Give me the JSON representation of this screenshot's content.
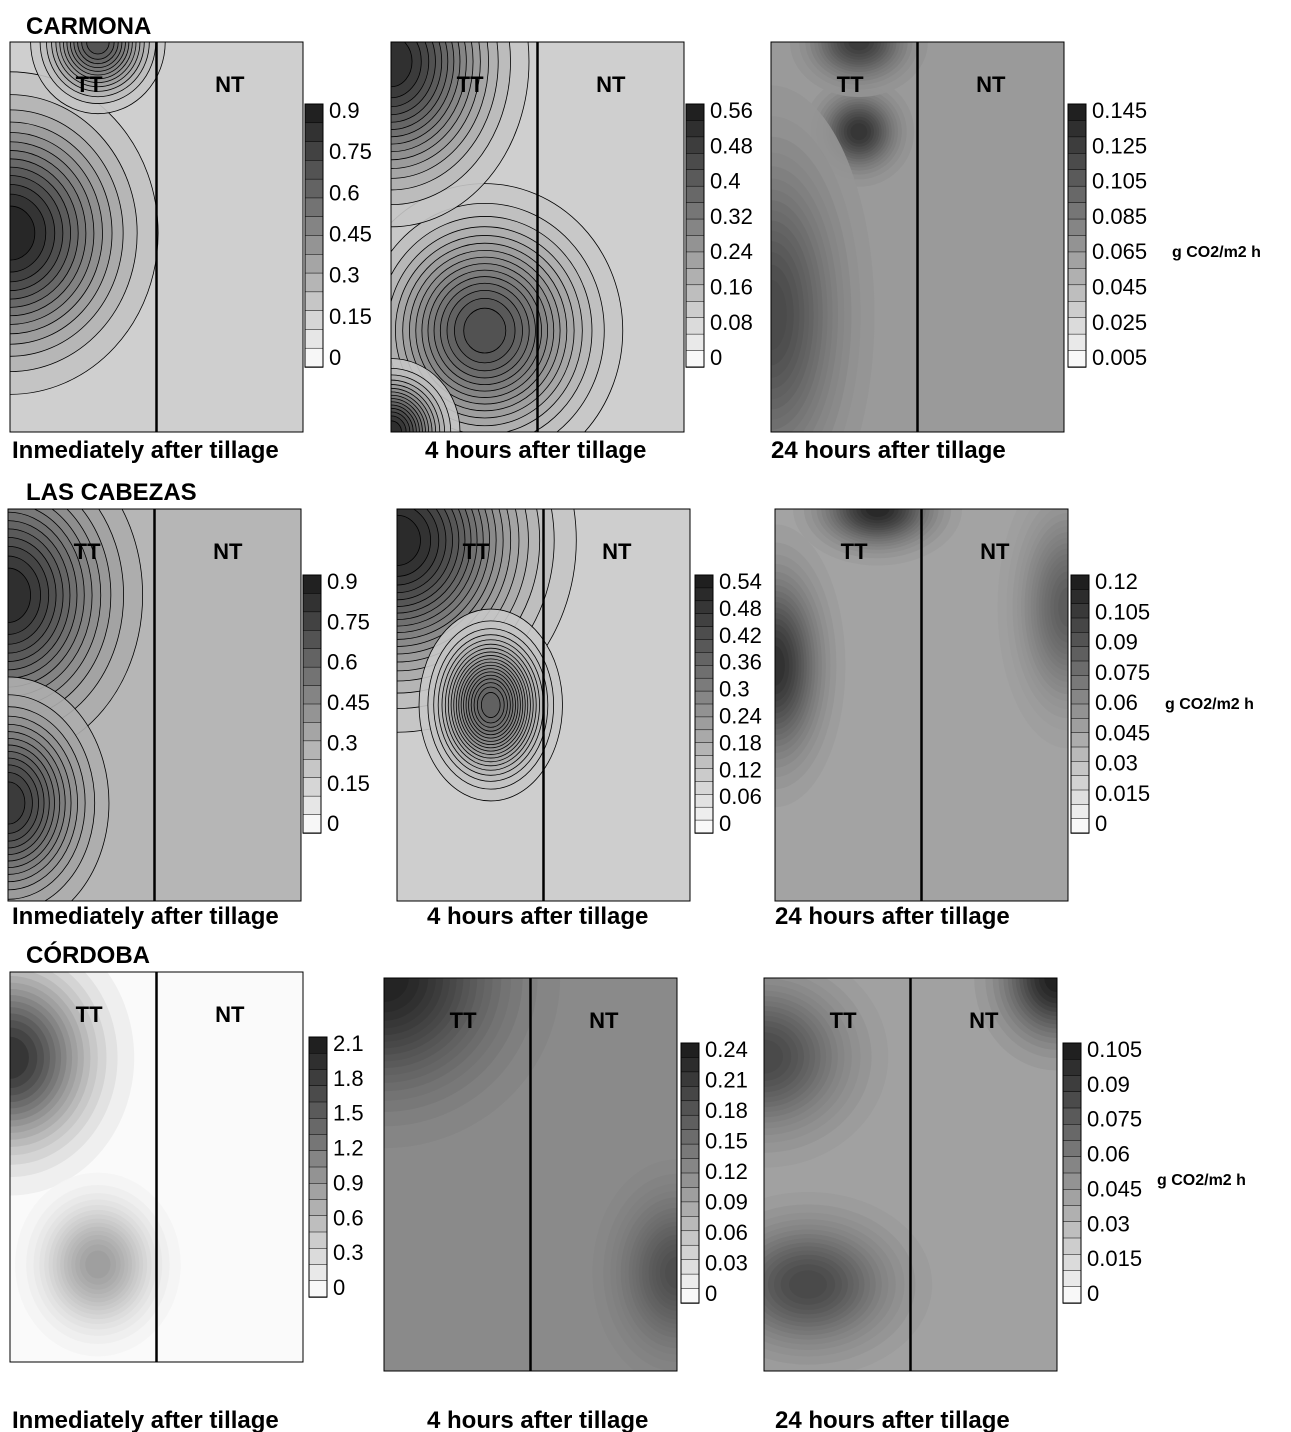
{
  "figure": {
    "unit_label": "g CO2/m2 h",
    "zone_labels": {
      "left": "TT",
      "right": "NT"
    }
  },
  "chart_data": [
    {
      "type": "heatmap",
      "site": "CARMONA",
      "caption": "Inmediately after tillage",
      "zones": [
        "TT",
        "NT"
      ],
      "colorbar": {
        "ticks": [
          "0.9",
          "0.75",
          "0.6",
          "0.45",
          "0.3",
          "0.15",
          "0"
        ],
        "range": [
          0,
          0.95
        ],
        "unit": ""
      },
      "hotspots": [
        {
          "u": 0.0,
          "v": 0.49,
          "value": 0.95,
          "sx": 0.22,
          "sy": 0.18
        },
        {
          "u": 0.3,
          "v": 0.0,
          "value": 0.75,
          "sx": 0.1,
          "sy": 0.08
        }
      ],
      "base": 0.2,
      "lines": true
    },
    {
      "type": "heatmap",
      "site": "CARMONA",
      "caption": "4 hours after tillage",
      "zones": [
        "TT",
        "NT"
      ],
      "colorbar": {
        "ticks": [
          "0.56",
          "0.48",
          "0.4",
          "0.32",
          "0.24",
          "0.16",
          "0.08",
          "0"
        ],
        "range": [
          0,
          0.58
        ],
        "unit": ""
      },
      "hotspots": [
        {
          "u": 0.32,
          "v": 0.74,
          "value": 0.46,
          "sx": 0.2,
          "sy": 0.16
        },
        {
          "u": 0.0,
          "v": 0.05,
          "value": 0.55,
          "sx": 0.2,
          "sy": 0.18
        },
        {
          "u": 0.0,
          "v": 1.0,
          "value": 0.56,
          "sx": 0.1,
          "sy": 0.08
        }
      ],
      "base": 0.12,
      "lines": true
    },
    {
      "type": "heatmap",
      "site": "CARMONA",
      "caption": "24 hours after tillage",
      "zones": [
        "TT",
        "NT"
      ],
      "colorbar": {
        "ticks": [
          "0.145",
          "0.125",
          "0.105",
          "0.085",
          "0.065",
          "0.045",
          "0.025",
          "0.005"
        ],
        "range": [
          0,
          0.16
        ],
        "unit": "g CO2/m2 h"
      },
      "hotspots": [
        {
          "u": 0.3,
          "v": 0.23,
          "value": 0.145,
          "sx": 0.08,
          "sy": 0.06
        },
        {
          "u": 0.0,
          "v": 0.7,
          "value": 0.13,
          "sx": 0.15,
          "sy": 0.25
        },
        {
          "u": 0.3,
          "v": 0.0,
          "value": 0.14,
          "sx": 0.1,
          "sy": 0.06
        }
      ],
      "base": 0.07,
      "lines": false
    },
    {
      "type": "heatmap",
      "site": "LAS CABEZAS",
      "caption": "Inmediately after tillage",
      "zones": [
        "TT",
        "NT"
      ],
      "colorbar": {
        "ticks": [
          "0.9",
          "0.75",
          "0.6",
          "0.45",
          "0.3",
          "0.15",
          "0"
        ],
        "range": [
          0,
          0.95
        ],
        "unit": ""
      },
      "hotspots": [
        {
          "u": 0.0,
          "v": 0.22,
          "value": 0.9,
          "sx": 0.2,
          "sy": 0.18
        },
        {
          "u": 0.0,
          "v": 0.75,
          "value": 0.85,
          "sx": 0.15,
          "sy": 0.14
        }
      ],
      "base": 0.3,
      "lines": true
    },
    {
      "type": "heatmap",
      "site": "LAS CABEZAS",
      "caption": "4 hours after tillage",
      "zones": [
        "TT",
        "NT"
      ],
      "colorbar": {
        "ticks": [
          "0.54",
          "0.48",
          "0.42",
          "0.36",
          "0.3",
          "0.24",
          "0.18",
          "0.12",
          "0.06",
          "0"
        ],
        "range": [
          0,
          0.56
        ],
        "unit": ""
      },
      "hotspots": [
        {
          "u": 0.0,
          "v": 0.08,
          "value": 0.54,
          "sx": 0.25,
          "sy": 0.2
        },
        {
          "u": 0.32,
          "v": 0.5,
          "value": 0.4,
          "sx": 0.1,
          "sy": 0.1
        }
      ],
      "base": 0.12,
      "lines": true
    },
    {
      "type": "heatmap",
      "site": "LAS CABEZAS",
      "caption": "24 hours after tillage",
      "zones": [
        "TT",
        "NT"
      ],
      "colorbar": {
        "ticks": [
          "0.12",
          "0.105",
          "0.09",
          "0.075",
          "0.06",
          "0.045",
          "0.03",
          "0.015",
          "0"
        ],
        "range": [
          0,
          0.125
        ],
        "unit": "g CO2/m2 h"
      },
      "hotspots": [
        {
          "u": 0.0,
          "v": 0.4,
          "value": 0.115,
          "sx": 0.1,
          "sy": 0.15
        },
        {
          "u": 0.35,
          "v": 0.0,
          "value": 0.12,
          "sx": 0.12,
          "sy": 0.06
        },
        {
          "u": 1.0,
          "v": 0.25,
          "value": 0.09,
          "sx": 0.1,
          "sy": 0.15
        }
      ],
      "base": 0.05,
      "lines": false
    },
    {
      "type": "heatmap",
      "site": "CÓRDOBA",
      "caption": "Inmediately after tillage",
      "zones": [
        "TT",
        "NT"
      ],
      "colorbar": {
        "ticks": [
          "2.1",
          "1.8",
          "1.5",
          "1.2",
          "0.9",
          "0.6",
          "0.3",
          "0"
        ],
        "range": [
          0,
          2.25
        ],
        "unit": ""
      },
      "hotspots": [
        {
          "u": 0.0,
          "v": 0.22,
          "value": 2.1,
          "sx": 0.18,
          "sy": 0.15
        },
        {
          "u": 0.3,
          "v": 0.75,
          "value": 1.0,
          "sx": 0.12,
          "sy": 0.1
        }
      ],
      "base": 0.05,
      "lines": false
    },
    {
      "type": "heatmap",
      "site": "CÓRDOBA",
      "caption": "4 hours after tillage",
      "zones": [
        "TT",
        "NT"
      ],
      "colorbar": {
        "ticks": [
          "0.24",
          "0.21",
          "0.18",
          "0.15",
          "0.12",
          "0.09",
          "0.06",
          "0.03",
          "0"
        ],
        "range": [
          0,
          0.255
        ],
        "unit": ""
      },
      "hotspots": [
        {
          "u": 0.0,
          "v": 0.0,
          "value": 0.25,
          "sx": 0.25,
          "sy": 0.18
        },
        {
          "u": 1.0,
          "v": 0.75,
          "value": 0.2,
          "sx": 0.12,
          "sy": 0.12
        }
      ],
      "base": 0.13,
      "lines": false
    },
    {
      "type": "heatmap",
      "site": "CÓRDOBA",
      "caption": "24 hours after tillage",
      "zones": [
        "TT",
        "NT"
      ],
      "colorbar": {
        "ticks": [
          "0.105",
          "0.09",
          "0.075",
          "0.06",
          "0.045",
          "0.03",
          "0.015",
          "0"
        ],
        "range": [
          0,
          0.11
        ],
        "unit": "g CO2/m2 h"
      },
      "hotspots": [
        {
          "u": 0.0,
          "v": 0.2,
          "value": 0.09,
          "sx": 0.18,
          "sy": 0.12
        },
        {
          "u": 0.15,
          "v": 0.78,
          "value": 0.09,
          "sx": 0.18,
          "sy": 0.1
        },
        {
          "u": 1.0,
          "v": 0.0,
          "value": 0.11,
          "sx": 0.12,
          "sy": 0.1
        }
      ],
      "base": 0.045,
      "lines": false
    }
  ]
}
